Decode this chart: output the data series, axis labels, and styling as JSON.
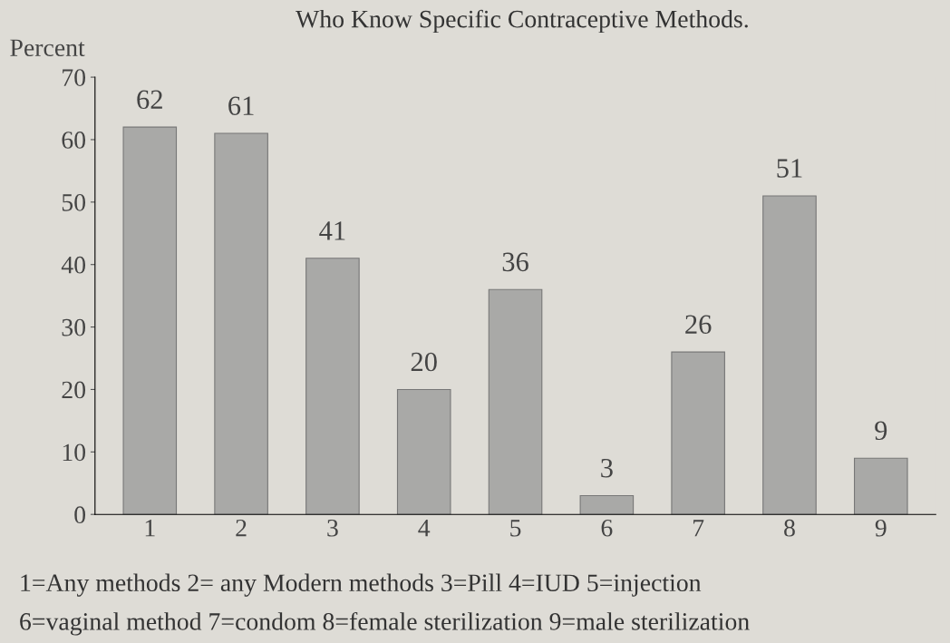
{
  "chart_data": {
    "type": "bar",
    "title": "Who Know Specific Contraceptive Methods.",
    "ylabel": "Percent",
    "categories": [
      "1",
      "2",
      "3",
      "4",
      "5",
      "6",
      "7",
      "8",
      "9"
    ],
    "values": [
      62,
      61,
      41,
      20,
      36,
      3,
      26,
      51,
      9
    ],
    "color": "#a9a9a7",
    "data_labels": true,
    "ylim": [
      0,
      70
    ],
    "yticks": [
      0,
      10,
      20,
      30,
      40,
      50,
      60,
      70
    ],
    "grid": false,
    "legend": false,
    "annotations": [
      "1=Any methods 2= any Modern methods 3=Pill 4=IUD 5=injection",
      "6=vaginal method 7=condom 8=female sterilization 9=male sterilization"
    ]
  }
}
